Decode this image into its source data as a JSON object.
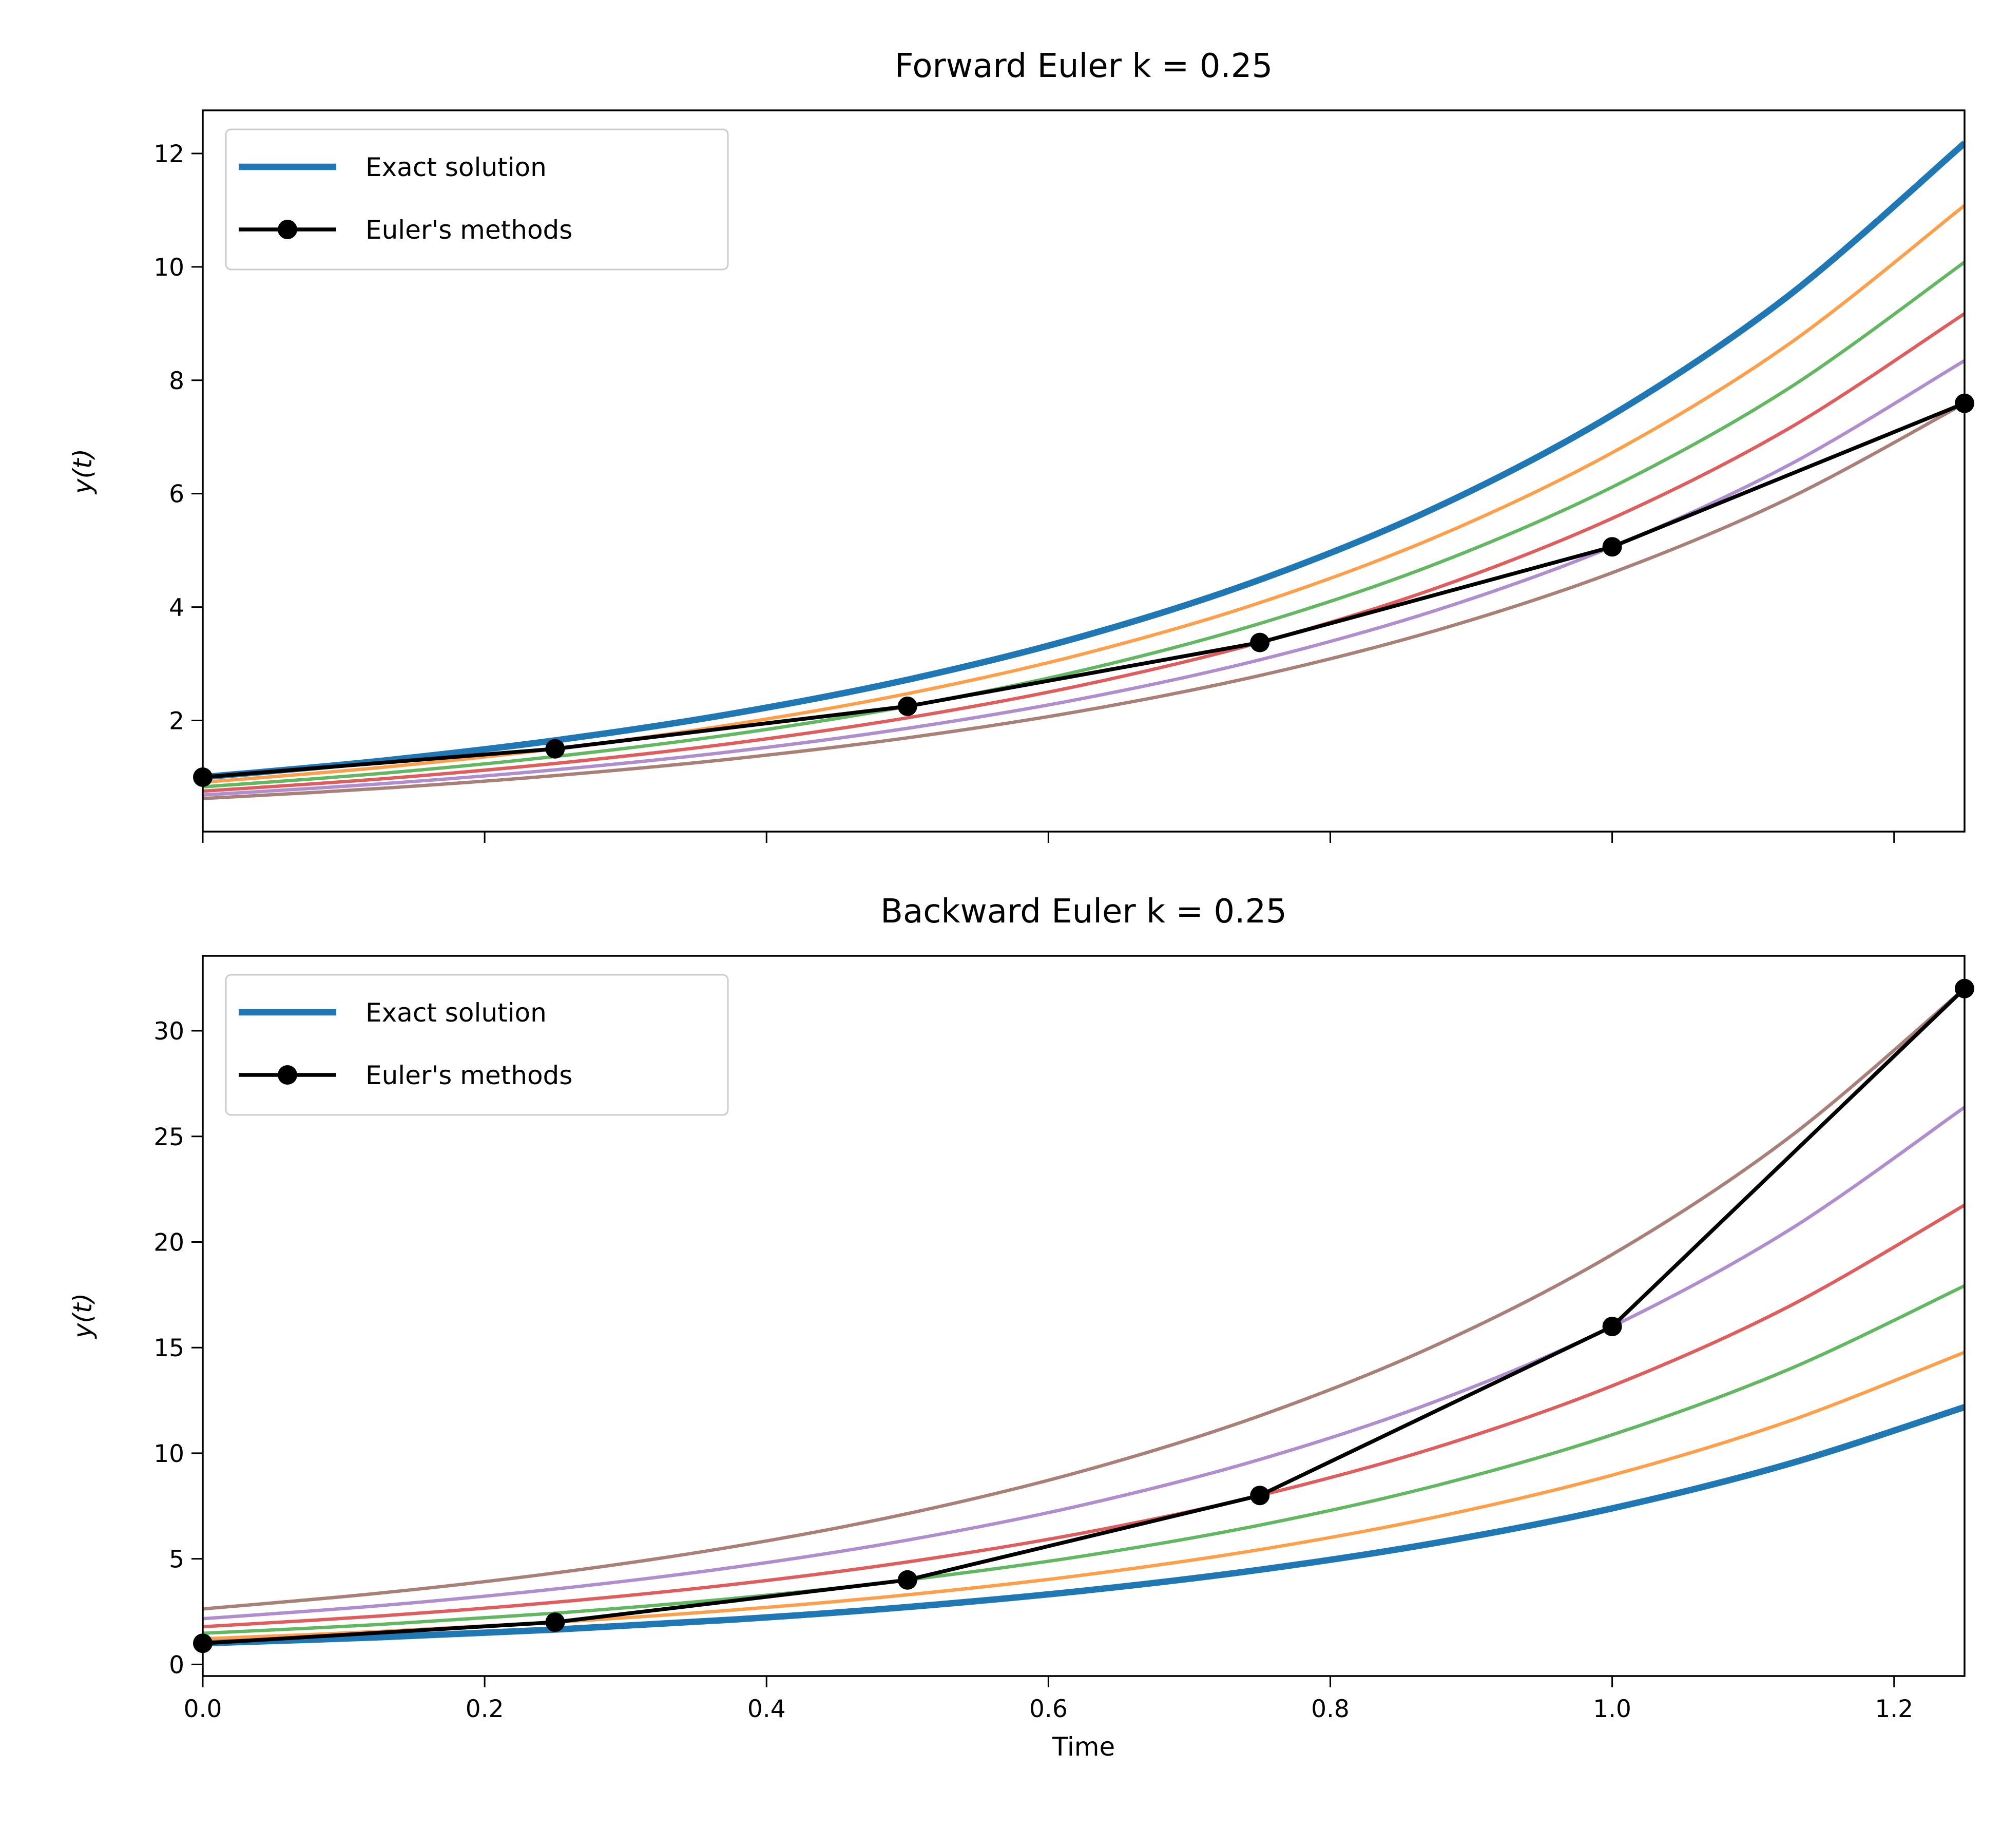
{
  "chart_data": [
    {
      "type": "line",
      "title": "Forward Euler k = 0.25",
      "xlabel": "",
      "ylabel": "y(t)",
      "xlim": [
        0,
        1.25
      ],
      "ylim": [
        0.04,
        12.76
      ],
      "grid": false,
      "legend_placement": "upper-left",
      "x_ticks": [
        0,
        0.2,
        0.4,
        0.6,
        0.8,
        1.0,
        1.2
      ],
      "x_tick_labels_shown": false,
      "y_ticks": [
        2,
        4,
        6,
        8,
        10,
        12
      ],
      "y_tick_labels": [
        "2",
        "4",
        "6",
        "8",
        "10",
        "12"
      ],
      "curve_x": [
        0,
        0.125,
        0.25,
        0.375,
        0.5,
        0.625,
        0.75,
        0.875,
        1.0,
        1.125,
        1.25
      ],
      "series": [
        {
          "name": "Exact solution",
          "color": "#1f77b4",
          "style": "thick",
          "y": [
            1,
            1.284,
            1.649,
            2.117,
            2.718,
            3.49,
            4.482,
            5.755,
            7.389,
            9.488,
            12.182
          ]
        },
        {
          "color": "#ff7f0e",
          "y": [
            0.91,
            1.168,
            1.5,
            1.926,
            2.473,
            3.176,
            4.077,
            5.236,
            6.723,
            8.632,
            11.084
          ]
        },
        {
          "color": "#2ca02c",
          "y": [
            0.828,
            1.063,
            1.365,
            1.752,
            2.25,
            2.889,
            3.71,
            4.763,
            6.116,
            7.853,
            10.083
          ]
        },
        {
          "color": "#d62728",
          "y": [
            0.753,
            0.967,
            1.242,
            1.594,
            2.047,
            2.629,
            3.375,
            4.334,
            5.565,
            7.145,
            9.175
          ]
        },
        {
          "color": "#9467bd",
          "y": [
            0.685,
            0.88,
            1.13,
            1.45,
            1.862,
            2.391,
            3.07,
            3.943,
            5.063,
            6.5,
            8.346
          ]
        },
        {
          "color": "#8c564b",
          "y": [
            0.623,
            0.8,
            1.028,
            1.32,
            1.694,
            2.175,
            2.793,
            3.587,
            4.606,
            5.914,
            7.593
          ]
        }
      ],
      "euler": {
        "name": "Euler's methods",
        "color": "#000000",
        "x": [
          0,
          0.25,
          0.5,
          0.75,
          1.0,
          1.25
        ],
        "y": [
          1,
          1.5,
          2.25,
          3.375,
          5.0625,
          7.59375
        ]
      }
    },
    {
      "type": "line",
      "title": "Backward Euler k = 0.25",
      "xlabel": "Time",
      "ylabel": "y(t)",
      "xlim": [
        0,
        1.25
      ],
      "ylim": [
        -0.55,
        33.55
      ],
      "grid": false,
      "legend_placement": "upper-left",
      "x_ticks": [
        0,
        0.2,
        0.4,
        0.6,
        0.8,
        1.0,
        1.2
      ],
      "x_tick_labels": [
        "0.0",
        "0.2",
        "0.4",
        "0.6",
        "0.8",
        "1.0",
        "1.2"
      ],
      "x_tick_labels_shown": true,
      "y_ticks": [
        0,
        5,
        10,
        15,
        20,
        25,
        30
      ],
      "y_tick_labels": [
        "0",
        "5",
        "10",
        "15",
        "20",
        "25",
        "30"
      ],
      "curve_x": [
        0,
        0.125,
        0.25,
        0.375,
        0.5,
        0.625,
        0.75,
        0.875,
        1.0,
        1.125,
        1.25
      ],
      "series": [
        {
          "name": "Exact solution",
          "color": "#1f77b4",
          "style": "thick",
          "y": [
            1,
            1.284,
            1.649,
            2.117,
            2.718,
            3.49,
            4.482,
            5.755,
            7.389,
            9.488,
            12.182
          ]
        },
        {
          "color": "#ff7f0e",
          "y": [
            1.213,
            1.558,
            2.0,
            2.568,
            3.297,
            4.234,
            5.437,
            6.981,
            8.963,
            11.509,
            14.778
          ]
        },
        {
          "color": "#2ca02c",
          "y": [
            1.472,
            1.889,
            2.426,
            3.115,
            4.0,
            5.136,
            6.595,
            8.468,
            10.873,
            13.961,
            17.927
          ]
        },
        {
          "color": "#d62728",
          "y": [
            1.785,
            2.292,
            2.943,
            3.779,
            4.852,
            6.23,
            8.0,
            10.272,
            13.19,
            16.936,
            21.746
          ]
        },
        {
          "color": "#9467bd",
          "y": [
            2.165,
            2.78,
            3.57,
            4.584,
            5.886,
            7.558,
            9.704,
            12.46,
            16.0,
            20.544,
            26.379
          ]
        },
        {
          "color": "#8c564b",
          "y": [
            2.627,
            3.373,
            4.331,
            5.561,
            7.14,
            9.168,
            11.772,
            15.115,
            19.408,
            24.921,
            31.999
          ]
        }
      ],
      "euler": {
        "name": "Euler's methods",
        "color": "#000000",
        "x": [
          0,
          0.25,
          0.5,
          0.75,
          1.0,
          1.25
        ],
        "y": [
          1,
          2,
          4,
          8,
          16,
          32
        ]
      }
    }
  ]
}
